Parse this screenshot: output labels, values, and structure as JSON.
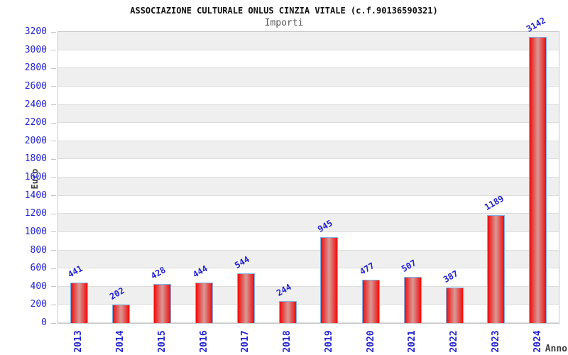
{
  "chart_data": {
    "type": "bar",
    "title": "ASSOCIAZIONE CULTURALE ONLUS CINZIA VITALE (c.f.90136590321)",
    "subtitle": "Importi",
    "xlabel": "Anno",
    "ylabel": "Euro",
    "categories": [
      "2013",
      "2014",
      "2015",
      "2016",
      "2017",
      "2018",
      "2019",
      "2020",
      "2021",
      "2022",
      "2023",
      "2024"
    ],
    "values": [
      441,
      202,
      428,
      444,
      544,
      244,
      945,
      477,
      507,
      387,
      1189,
      3142
    ],
    "ylim": [
      0,
      3200
    ],
    "ytick_step": 200,
    "yticks": [
      0,
      200,
      400,
      600,
      800,
      1000,
      1200,
      1400,
      1600,
      1800,
      2000,
      2200,
      2400,
      2600,
      2800,
      3000,
      3200
    ],
    "grid": "alternating-horizontal-bands",
    "legend": "none",
    "value_labels_shown": true,
    "colors": {
      "bar_fill": "#ee0d0d",
      "bar_fill_center": "#d89a97",
      "bar_border": "#82aee3",
      "value_label": "#2323cf",
      "tick_label": "#2323cf",
      "band_gray": "#efefef",
      "band_white": "#ffffff",
      "band_line": "#dcdcdc",
      "plot_border": "#c8c8c8",
      "title_text": "#111111",
      "subtitle_text": "#555555",
      "axis_title_text": "#3c3c3c"
    }
  }
}
